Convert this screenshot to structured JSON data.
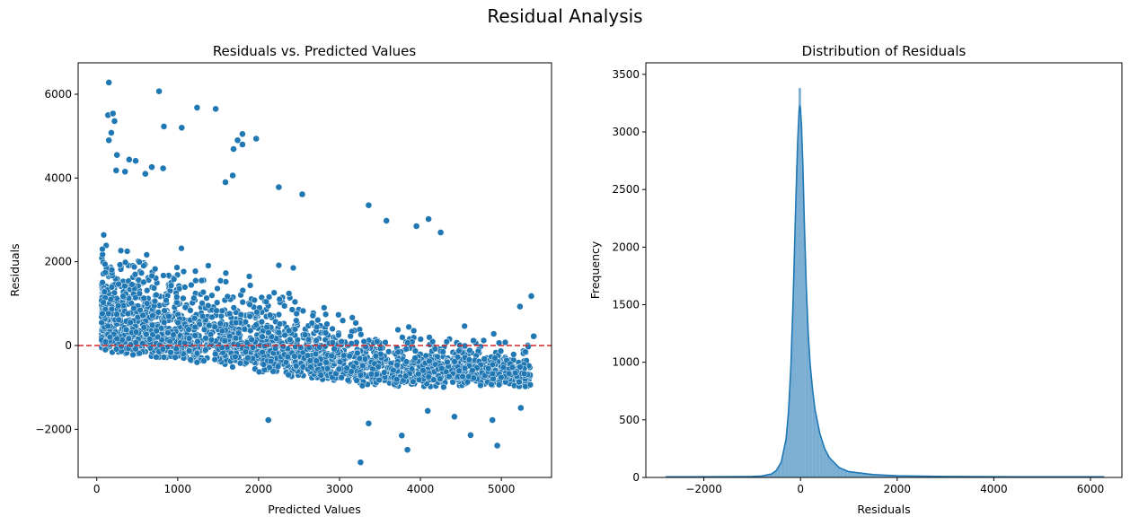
{
  "suptitle": "Residual Analysis",
  "colors": {
    "point": "#1f77b4",
    "hist_bar": "#1f77b4",
    "kde": "#1f77b4",
    "zero_line": "#d62728"
  },
  "chart_data": [
    {
      "type": "scatter",
      "title": "Residuals vs. Predicted Values",
      "xlabel": "Predicted Values",
      "ylabel": "Residuals",
      "xlim": [
        -230,
        5620
      ],
      "ylim": [
        -3150,
        6750
      ],
      "xticks": [
        0,
        1000,
        2000,
        3000,
        4000,
        5000
      ],
      "yticks": [
        -2000,
        0,
        2000,
        4000,
        6000
      ],
      "xtick_labels": [
        "0",
        "1000",
        "2000",
        "3000",
        "4000",
        "5000"
      ],
      "ytick_labels": [
        "−2000",
        "0",
        "2000",
        "4000",
        "6000"
      ],
      "reference_line": {
        "y": 0,
        "style": "dashed"
      },
      "outliers": [
        {
          "x": 150,
          "y": 6280
        },
        {
          "x": 770,
          "y": 6070
        },
        {
          "x": 140,
          "y": 5500
        },
        {
          "x": 200,
          "y": 5540
        },
        {
          "x": 220,
          "y": 5360
        },
        {
          "x": 1240,
          "y": 5680
        },
        {
          "x": 1470,
          "y": 5650
        },
        {
          "x": 830,
          "y": 5230
        },
        {
          "x": 1050,
          "y": 5200
        },
        {
          "x": 180,
          "y": 5080
        },
        {
          "x": 150,
          "y": 4900
        },
        {
          "x": 1800,
          "y": 5050
        },
        {
          "x": 1800,
          "y": 4800
        },
        {
          "x": 1740,
          "y": 4900
        },
        {
          "x": 1970,
          "y": 4940
        },
        {
          "x": 1690,
          "y": 4690
        },
        {
          "x": 250,
          "y": 4550
        },
        {
          "x": 400,
          "y": 4440
        },
        {
          "x": 480,
          "y": 4410
        },
        {
          "x": 680,
          "y": 4260
        },
        {
          "x": 240,
          "y": 4180
        },
        {
          "x": 350,
          "y": 4150
        },
        {
          "x": 600,
          "y": 4100
        },
        {
          "x": 820,
          "y": 4230
        },
        {
          "x": 1680,
          "y": 4060
        },
        {
          "x": 1590,
          "y": 3900
        },
        {
          "x": 2250,
          "y": 3780
        },
        {
          "x": 2540,
          "y": 3610
        },
        {
          "x": 3360,
          "y": 3350
        },
        {
          "x": 3580,
          "y": 2980
        },
        {
          "x": 4100,
          "y": 3020
        },
        {
          "x": 4250,
          "y": 2700
        },
        {
          "x": 3950,
          "y": 2850
        },
        {
          "x": 5370,
          "y": 1180
        },
        {
          "x": 5230,
          "y": 930
        },
        {
          "x": 3260,
          "y": -2790
        },
        {
          "x": 3840,
          "y": -2490
        },
        {
          "x": 3770,
          "y": -2150
        },
        {
          "x": 4950,
          "y": -2390
        },
        {
          "x": 4620,
          "y": -2140
        },
        {
          "x": 5240,
          "y": -1490
        },
        {
          "x": 3360,
          "y": -1860
        },
        {
          "x": 2120,
          "y": -1780
        },
        {
          "x": 4890,
          "y": -1780
        },
        {
          "x": 4420,
          "y": -1700
        },
        {
          "x": 4090,
          "y": -1560
        },
        {
          "x": 5220,
          "y": -870
        },
        {
          "x": 5400,
          "y": 220
        }
      ],
      "point_cloud": "approx. 15000 points with residuals mostly between -1000 and 2500, widest spread at low predicted values and narrowing toward predicted 5400"
    },
    {
      "type": "histogram",
      "title": "Distribution of Residuals",
      "xlabel": "Residuals",
      "ylabel": "Frequency",
      "xlim": [
        -3200,
        6650
      ],
      "ylim": [
        0,
        3600
      ],
      "xticks": [
        -2000,
        0,
        2000,
        4000,
        6000
      ],
      "yticks": [
        0,
        500,
        1000,
        1500,
        2000,
        2500,
        3000,
        3500
      ],
      "xtick_labels": [
        "−2000",
        "0",
        "2000",
        "4000",
        "6000"
      ],
      "ytick_labels": [
        "0",
        "500",
        "1000",
        "1500",
        "2000",
        "2500",
        "3000",
        "3500"
      ],
      "bin_width": 25,
      "data_range": [
        -2790,
        6280
      ],
      "peak": {
        "x": -20,
        "count": 3380
      },
      "kde_peak": 3230,
      "kde_curve": [
        [
          -2790,
          5
        ],
        [
          -1500,
          6
        ],
        [
          -1000,
          8
        ],
        [
          -800,
          12
        ],
        [
          -600,
          30
        ],
        [
          -500,
          60
        ],
        [
          -400,
          130
        ],
        [
          -300,
          330
        ],
        [
          -250,
          560
        ],
        [
          -200,
          950
        ],
        [
          -150,
          1580
        ],
        [
          -100,
          2350
        ],
        [
          -60,
          2900
        ],
        [
          -30,
          3180
        ],
        [
          -15,
          3230
        ],
        [
          0,
          3200
        ],
        [
          20,
          3050
        ],
        [
          50,
          2700
        ],
        [
          80,
          2200
        ],
        [
          120,
          1650
        ],
        [
          160,
          1250
        ],
        [
          200,
          980
        ],
        [
          250,
          760
        ],
        [
          300,
          590
        ],
        [
          400,
          380
        ],
        [
          500,
          250
        ],
        [
          600,
          170
        ],
        [
          800,
          85
        ],
        [
          1000,
          50
        ],
        [
          1500,
          25
        ],
        [
          2000,
          14
        ],
        [
          3000,
          8
        ],
        [
          4000,
          6
        ],
        [
          6280,
          5
        ]
      ]
    }
  ]
}
